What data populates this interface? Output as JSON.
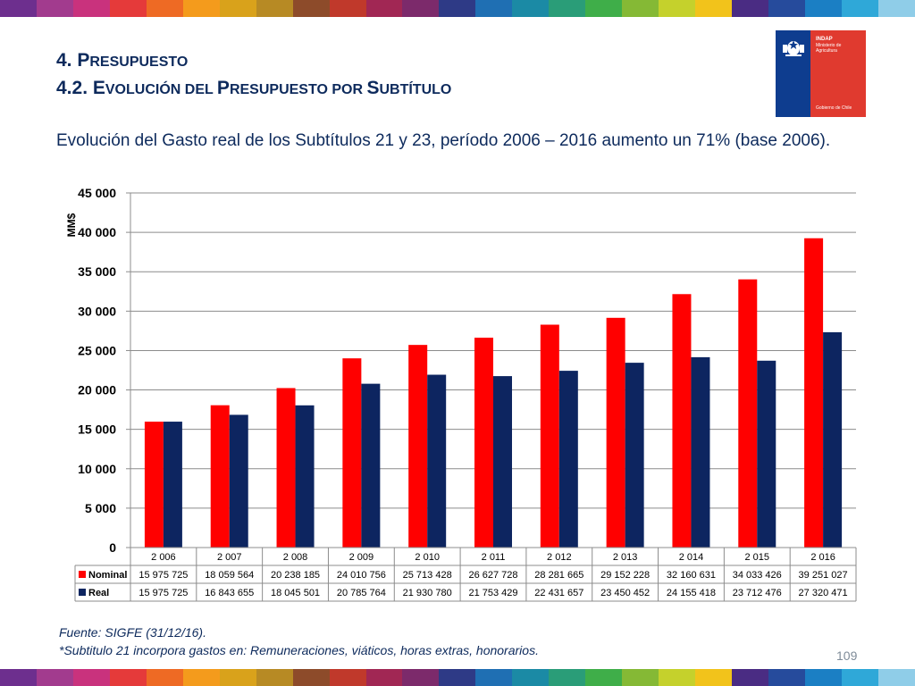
{
  "header": {
    "title_line1": {
      "prefix": "4. P",
      "rest": "RESUPUESTO"
    },
    "title_line2": [
      {
        "text": "4.2. E",
        "small": false
      },
      {
        "text": "VOLUCIÓN DEL ",
        "small": true
      },
      {
        "text": "P",
        "small": false
      },
      {
        "text": "RESUPUESTO POR ",
        "small": true
      },
      {
        "text": "S",
        "small": false
      },
      {
        "text": "UBTÍTULO",
        "small": true
      }
    ]
  },
  "logo": {
    "org": "INDAP",
    "ministry": "Ministerio de Agricultura",
    "government": "Gobierno de Chile",
    "colors": {
      "blue": "#0e3d8f",
      "red": "#e03a2f"
    }
  },
  "intro_text": "Evolución del Gasto real de los Subtítulos 21 y 23, período 2006 – 2016 aumento un 71% (base 2006).",
  "chart_data": {
    "type": "bar",
    "ylabel": "MM$",
    "ylim": [
      0,
      45000
    ],
    "yticks": [
      0,
      5000,
      10000,
      15000,
      20000,
      25000,
      30000,
      35000,
      40000,
      45000
    ],
    "ytick_labels": [
      "0",
      "5 000",
      "10 000",
      "15 000",
      "20 000",
      "25 000",
      "30 000",
      "35 000",
      "40 000",
      "45 000"
    ],
    "grid": true,
    "categories": [
      "2 006",
      "2 007",
      "2 008",
      "2 009",
      "2 010",
      "2 011",
      "2 012",
      "2 013",
      "2 014",
      "2 015",
      "2 016"
    ],
    "series": [
      {
        "name": "Nominal",
        "color": "#ff0000",
        "values": [
          15975.725,
          18059.564,
          20238.185,
          24010.756,
          25713.428,
          26627.728,
          28281.665,
          29152.228,
          32160.631,
          34033.426,
          39251.027
        ],
        "labels": [
          "15 975 725",
          "18 059 564",
          "20 238 185",
          "24 010 756",
          "25 713 428",
          "26 627 728",
          "28 281 665",
          "29 152 228",
          "32 160 631",
          "34 033 426",
          "39 251 027"
        ]
      },
      {
        "name": "Real",
        "color": "#0d2560",
        "values": [
          15975.725,
          16843.655,
          18045.501,
          20785.764,
          21930.78,
          21753.429,
          22431.657,
          23450.452,
          24155.418,
          23712.476,
          27320.471
        ],
        "labels": [
          "15 975 725",
          "16 843 655",
          "18 045 501",
          "20 785 764",
          "21 930 780",
          "21 753 429",
          "22 431 657",
          "23 450 452",
          "24 155 418",
          "23 712 476",
          "27 320 471"
        ]
      }
    ],
    "legend": "data-table"
  },
  "footer": {
    "source": "Fuente: SIGFE (31/12/16).",
    "note": "*Subtitulo 21 incorpora gastos en: Remuneraciones, viáticos, horas extras, honorarios.",
    "page_number": "109"
  },
  "stripe_colors": [
    "#6d2f8e",
    "#a23b8e",
    "#c9327d",
    "#e53a3a",
    "#ee6a24",
    "#f49b1c",
    "#d9a21b",
    "#b78a24",
    "#8d4b2a",
    "#c0392b",
    "#a12754",
    "#7c2a6b",
    "#2e3a86",
    "#1f6fb3",
    "#1b8aa5",
    "#2a9d78",
    "#3fae49",
    "#85b935",
    "#c5d12c",
    "#f2c31b",
    "#4a2c83",
    "#264b9c",
    "#1b7fc4",
    "#2fa8d8",
    "#8fcde8"
  ]
}
